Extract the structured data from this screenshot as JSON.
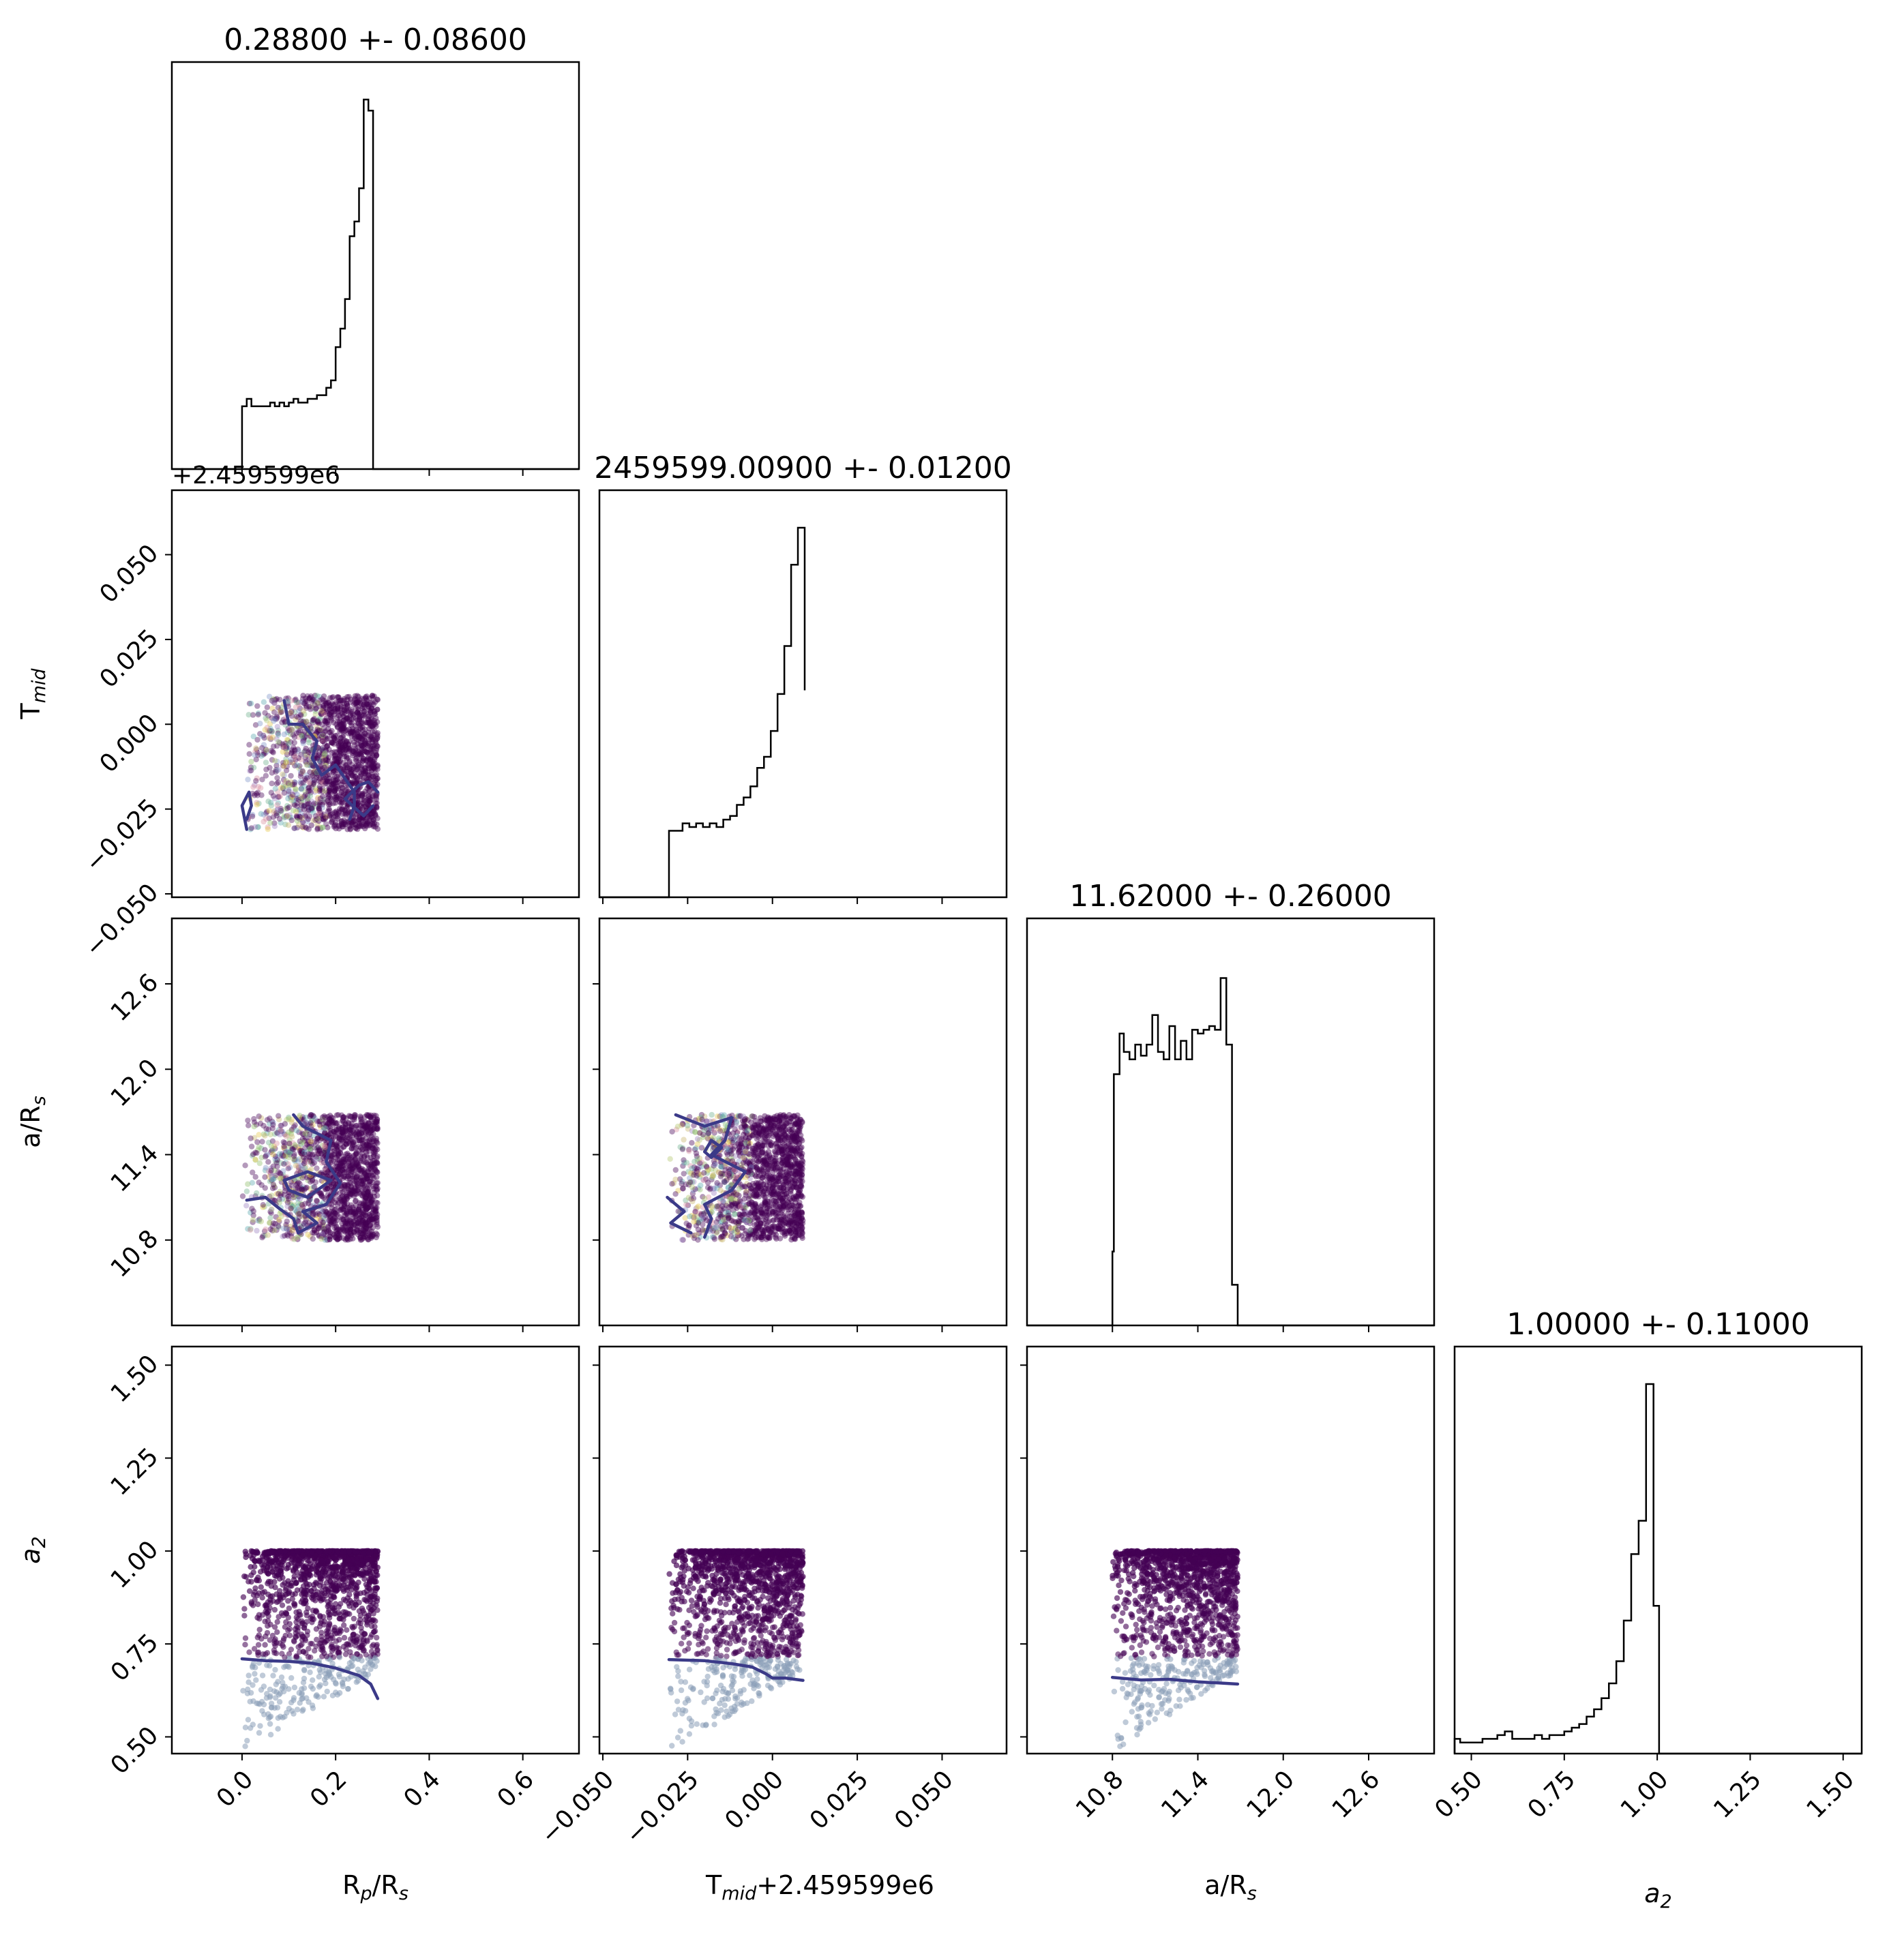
{
  "chart_data": {
    "type": "corner",
    "params": [
      {
        "key": "rp",
        "label": "R",
        "label_sub": "p",
        "label_rest": "/R",
        "label_sub2": "s",
        "title": "0.28800 +- 0.08600",
        "range": [
          -0.15,
          0.72
        ],
        "ticks": [
          0.0,
          0.2,
          0.4,
          0.6
        ],
        "ticklabels": [
          "0.0",
          "0.2",
          "0.4",
          "0.6"
        ]
      },
      {
        "key": "tmid",
        "label": "T",
        "label_sub": "mid",
        "label_rest": "",
        "label_sub2": "",
        "title": "2459599.00900 +- 0.01200",
        "offset_text": "+2.459599e6",
        "xlabel_suffix": "+2.459599e6",
        "range": [
          -0.051,
          0.069
        ],
        "ticks": [
          -0.05,
          -0.025,
          0.0,
          0.025,
          0.05
        ],
        "ticklabels": [
          "−0.050",
          "−0.025",
          "0.000",
          "0.025",
          "0.050"
        ]
      },
      {
        "key": "ars",
        "label": "a/R",
        "label_sub": "s",
        "label_rest": "",
        "label_sub2": "",
        "title": "11.62000 +- 0.26000",
        "range": [
          10.2,
          13.06
        ],
        "ticks": [
          10.8,
          11.4,
          12.0,
          12.6
        ],
        "ticklabels": [
          "10.8",
          "11.4",
          "12.0",
          "12.6"
        ]
      },
      {
        "key": "a2",
        "label": "a",
        "label_sub": "2",
        "label_rest": "",
        "label_sub2": "",
        "italic": true,
        "title": "1.00000 +- 0.11000",
        "range": [
          0.455,
          1.55
        ],
        "ticks": [
          0.5,
          0.75,
          1.0,
          1.25,
          1.5
        ],
        "ticklabels": [
          "0.50",
          "0.75",
          "1.00",
          "1.25",
          "1.50"
        ]
      }
    ],
    "histograms": [
      {
        "param": "rp",
        "edges": [
          0.0,
          0.01,
          0.02,
          0.03,
          0.04,
          0.05,
          0.06,
          0.07,
          0.08,
          0.09,
          0.1,
          0.11,
          0.12,
          0.13,
          0.14,
          0.15,
          0.16,
          0.17,
          0.18,
          0.19,
          0.2,
          0.21,
          0.22,
          0.23,
          0.24,
          0.25,
          0.26,
          0.27,
          0.28,
          0.29
        ],
        "counts": [
          0.17,
          0.19,
          0.17,
          0.17,
          0.17,
          0.17,
          0.18,
          0.17,
          0.18,
          0.17,
          0.18,
          0.19,
          0.18,
          0.18,
          0.19,
          0.19,
          0.2,
          0.2,
          0.22,
          0.24,
          0.33,
          0.38,
          0.46,
          0.63,
          0.67,
          0.76,
          1.0,
          0.97,
          0.0
        ]
      },
      {
        "param": "tmid",
        "edges": [
          -0.0305,
          -0.0285,
          -0.0265,
          -0.0245,
          -0.0225,
          -0.0205,
          -0.0185,
          -0.0165,
          -0.0145,
          -0.0125,
          -0.0105,
          -0.0085,
          -0.0065,
          -0.0045,
          -0.0025,
          -0.0005,
          0.0015,
          0.0035,
          0.0055,
          0.0075,
          0.0095
        ],
        "counts": [
          0.18,
          0.18,
          0.2,
          0.19,
          0.2,
          0.19,
          0.2,
          0.19,
          0.21,
          0.22,
          0.25,
          0.27,
          0.3,
          0.35,
          0.38,
          0.45,
          0.55,
          0.68,
          0.9,
          1.0,
          0.56
        ]
      },
      {
        "param": "ars",
        "edges": [
          10.6,
          10.8,
          10.81,
          10.85,
          10.88,
          10.92,
          10.96,
          11.0,
          11.04,
          11.08,
          11.12,
          11.16,
          11.2,
          11.24,
          11.28,
          11.32,
          11.36,
          11.4,
          11.44,
          11.48,
          11.52,
          11.56,
          11.6,
          11.64,
          11.68,
          11.72,
          11.75
        ],
        "counts": [
          0.0,
          0.2,
          0.68,
          0.79,
          0.74,
          0.72,
          0.76,
          0.73,
          0.76,
          0.84,
          0.74,
          0.72,
          0.81,
          0.72,
          0.77,
          0.72,
          0.8,
          0.79,
          0.8,
          0.81,
          0.8,
          0.94,
          0.76,
          0.11,
          0.0,
          0.0
        ]
      },
      {
        "param": "a2",
        "edges": [
          0.455,
          0.47,
          0.49,
          0.51,
          0.53,
          0.55,
          0.57,
          0.59,
          0.61,
          0.63,
          0.65,
          0.67,
          0.69,
          0.71,
          0.73,
          0.75,
          0.77,
          0.79,
          0.81,
          0.83,
          0.85,
          0.87,
          0.89,
          0.91,
          0.93,
          0.95,
          0.97,
          0.99,
          1.005,
          1.55
        ],
        "counts": [
          0.04,
          0.03,
          0.03,
          0.03,
          0.04,
          0.04,
          0.05,
          0.06,
          0.04,
          0.04,
          0.04,
          0.05,
          0.04,
          0.05,
          0.05,
          0.06,
          0.07,
          0.08,
          0.1,
          0.12,
          0.15,
          0.19,
          0.25,
          0.36,
          0.54,
          0.63,
          1.0,
          0.4,
          0.0
        ]
      }
    ],
    "scatter_panels": [
      {
        "x": "rp",
        "y": "tmid",
        "x_span": [
          0.0,
          0.29
        ],
        "y_span": [
          -0.031,
          0.0085
        ],
        "style": "mixed",
        "contours": [
          [
            [
              0.01,
              -0.031
            ],
            [
              0.0,
              -0.024
            ],
            [
              0.015,
              -0.02
            ],
            [
              0.02,
              -0.024
            ],
            [
              0.01,
              -0.028
            ]
          ],
          [
            [
              0.09,
              0.007
            ],
            [
              0.1,
              0.0
            ],
            [
              0.13,
              0.0
            ],
            [
              0.16,
              -0.005
            ],
            [
              0.15,
              -0.01
            ],
            [
              0.17,
              -0.015
            ],
            [
              0.2,
              -0.012
            ],
            [
              0.24,
              -0.02
            ],
            [
              0.24,
              -0.024
            ],
            [
              0.23,
              -0.028
            ]
          ],
          [
            [
              0.29,
              -0.02
            ],
            [
              0.27,
              -0.017
            ],
            [
              0.25,
              -0.018
            ],
            [
              0.22,
              -0.022
            ],
            [
              0.26,
              -0.027
            ],
            [
              0.28,
              -0.024
            ]
          ]
        ]
      },
      {
        "x": "rp",
        "y": "ars",
        "x_span": [
          0.0,
          0.29
        ],
        "y_span": [
          10.8,
          11.68
        ],
        "style": "mixed",
        "contours": [
          [
            [
              0.11,
              11.68
            ],
            [
              0.13,
              11.6
            ],
            [
              0.19,
              11.5
            ],
            [
              0.18,
              11.35
            ],
            [
              0.21,
              11.2
            ],
            [
              0.18,
              11.05
            ],
            [
              0.13,
              11.0
            ],
            [
              0.16,
              10.92
            ],
            [
              0.12,
              10.85
            ],
            [
              0.11,
              10.95
            ],
            [
              0.08,
              11.02
            ],
            [
              0.05,
              11.1
            ],
            [
              0.01,
              11.08
            ]
          ],
          [
            [
              0.09,
              11.22
            ],
            [
              0.14,
              11.28
            ],
            [
              0.19,
              11.22
            ],
            [
              0.14,
              11.1
            ],
            [
              0.1,
              11.15
            ],
            [
              0.09,
              11.22
            ]
          ]
        ]
      },
      {
        "x": "tmid",
        "y": "ars",
        "x_span": [
          -0.0305,
          0.009
        ],
        "y_span": [
          10.8,
          11.68
        ],
        "style": "mixed",
        "contours": [
          [
            [
              -0.0285,
              11.68
            ],
            [
              -0.02,
              11.6
            ],
            [
              -0.012,
              11.66
            ],
            [
              -0.014,
              11.5
            ],
            [
              -0.018,
              11.4
            ],
            [
              -0.008,
              11.28
            ],
            [
              -0.012,
              11.15
            ],
            [
              -0.02,
              11.05
            ],
            [
              -0.018,
              10.95
            ],
            [
              -0.02,
              10.82
            ]
          ],
          [
            [
              -0.031,
              11.1
            ],
            [
              -0.026,
              11.0
            ],
            [
              -0.03,
              10.92
            ],
            [
              -0.024,
              10.85
            ]
          ],
          [
            [
              -0.02,
              11.42
            ],
            [
              -0.018,
              11.5
            ],
            [
              -0.015,
              11.45
            ],
            [
              -0.018,
              11.38
            ],
            [
              -0.02,
              11.42
            ]
          ]
        ]
      },
      {
        "x": "rp",
        "y": "a2",
        "x_span": [
          0.0,
          0.29
        ],
        "y_span": [
          0.46,
          1.0
        ],
        "style": "gradient",
        "contours": [
          [
            [
              0.0,
              0.71
            ],
            [
              0.05,
              0.705
            ],
            [
              0.1,
              0.703
            ],
            [
              0.15,
              0.698
            ],
            [
              0.2,
              0.685
            ],
            [
              0.25,
              0.665
            ],
            [
              0.275,
              0.642
            ],
            [
              0.29,
              0.603
            ]
          ]
        ]
      },
      {
        "x": "tmid",
        "y": "a2",
        "x_span": [
          -0.0305,
          0.009
        ],
        "y_span": [
          0.46,
          1.0
        ],
        "style": "gradient",
        "contours": [
          [
            [
              -0.0305,
              0.708
            ],
            [
              -0.02,
              0.705
            ],
            [
              -0.012,
              0.697
            ],
            [
              -0.006,
              0.688
            ],
            [
              -0.002,
              0.67
            ],
            [
              0.0,
              0.658
            ],
            [
              0.004,
              0.658
            ],
            [
              0.009,
              0.652
            ]
          ]
        ]
      },
      {
        "x": "ars",
        "y": "a2",
        "x_span": [
          10.8,
          11.68
        ],
        "y_span": [
          0.46,
          1.0
        ],
        "style": "gradient",
        "contours": [
          [
            [
              10.8,
              0.66
            ],
            [
              11.0,
              0.653
            ],
            [
              11.2,
              0.655
            ],
            [
              11.4,
              0.648
            ],
            [
              11.55,
              0.645
            ],
            [
              11.68,
              0.642
            ]
          ]
        ]
      }
    ],
    "colors": {
      "axes": "#000000",
      "hist": "#000000",
      "contour": "#3b3a88",
      "dense": "#440154",
      "light": "#8b9fb8"
    }
  }
}
